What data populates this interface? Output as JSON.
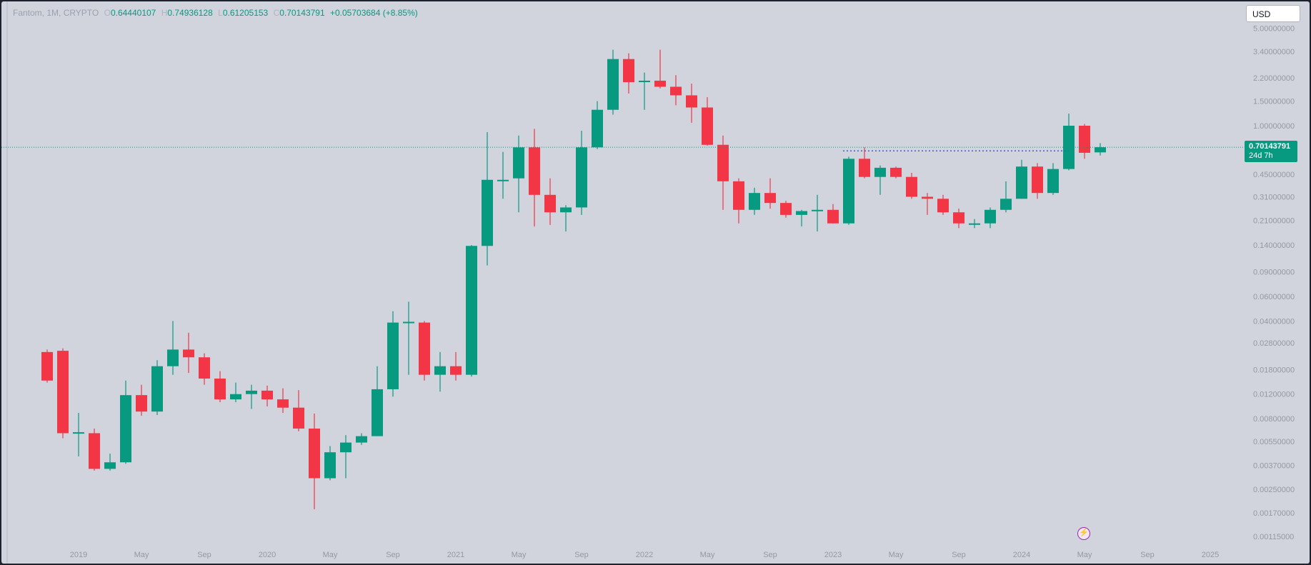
{
  "legend": {
    "symbol": "Fantom, 1M, CRYPTO",
    "o_label": "O",
    "o_value": "0.64440107",
    "h_label": "H",
    "h_value": "0.74936128",
    "l_label": "L",
    "l_value": "0.61205153",
    "c_label": "C",
    "c_value": "0.70143791",
    "change": "+0.05703684 (+8.85%)"
  },
  "currency": "USD",
  "last_price": {
    "value": "0.70143791",
    "countdown": "24d 7h"
  },
  "colors": {
    "up": "#089981",
    "down": "#f23645",
    "background": "#d1d4dc",
    "dashed_line": "#2962ff"
  },
  "chart_data": {
    "type": "candlestick",
    "y_scale": "log",
    "y_ticks": [
      "5.00000000",
      "3.40000000",
      "2.20000000",
      "1.50000000",
      "1.00000000",
      "0.45000000",
      "0.31000000",
      "0.21000000",
      "0.14000000",
      "0.09000000",
      "0.06000000",
      "0.04000000",
      "0.02800000",
      "0.01800000",
      "0.01200000",
      "0.00800000",
      "0.00550000",
      "0.00370000",
      "0.00250000",
      "0.00170000",
      "0.00115000"
    ],
    "x_ticks": [
      "2019",
      "May",
      "Sep",
      "2020",
      "May",
      "Sep",
      "2021",
      "May",
      "Sep",
      "2022",
      "May",
      "Sep",
      "2023",
      "May",
      "Sep",
      "2024",
      "May",
      "Sep",
      "2025"
    ],
    "x_range": [
      "2018-10",
      "2025-02"
    ],
    "series": [
      {
        "candles": [
          {
            "t": "2018-11",
            "o": 0.024,
            "h": 0.025,
            "l": 0.0145,
            "c": 0.015
          },
          {
            "t": "2018-12",
            "o": 0.0245,
            "h": 0.0255,
            "l": 0.0058,
            "c": 0.0063
          },
          {
            "t": "2019-01",
            "o": 0.0063,
            "h": 0.0088,
            "l": 0.0043,
            "c": 0.0064
          },
          {
            "t": "2019-02",
            "o": 0.0063,
            "h": 0.0068,
            "l": 0.0034,
            "c": 0.0035
          },
          {
            "t": "2019-03",
            "o": 0.0035,
            "h": 0.0045,
            "l": 0.0034,
            "c": 0.0039
          },
          {
            "t": "2019-04",
            "o": 0.0039,
            "h": 0.015,
            "l": 0.0038,
            "c": 0.0118
          },
          {
            "t": "2019-05",
            "o": 0.0118,
            "h": 0.014,
            "l": 0.0084,
            "c": 0.009
          },
          {
            "t": "2019-06",
            "o": 0.009,
            "h": 0.021,
            "l": 0.0085,
            "c": 0.019
          },
          {
            "t": "2019-07",
            "o": 0.019,
            "h": 0.04,
            "l": 0.0165,
            "c": 0.025
          },
          {
            "t": "2019-08",
            "o": 0.025,
            "h": 0.033,
            "l": 0.017,
            "c": 0.022
          },
          {
            "t": "2019-09",
            "o": 0.022,
            "h": 0.0235,
            "l": 0.014,
            "c": 0.0155
          },
          {
            "t": "2019-10",
            "o": 0.0155,
            "h": 0.0175,
            "l": 0.0105,
            "c": 0.011
          },
          {
            "t": "2019-11",
            "o": 0.011,
            "h": 0.0145,
            "l": 0.0105,
            "c": 0.012
          },
          {
            "t": "2019-12",
            "o": 0.012,
            "h": 0.014,
            "l": 0.0094,
            "c": 0.0127
          },
          {
            "t": "2020-01",
            "o": 0.0127,
            "h": 0.0138,
            "l": 0.0098,
            "c": 0.011
          },
          {
            "t": "2020-02",
            "o": 0.011,
            "h": 0.0132,
            "l": 0.0088,
            "c": 0.0096
          },
          {
            "t": "2020-03",
            "o": 0.0096,
            "h": 0.0128,
            "l": 0.0065,
            "c": 0.0068
          },
          {
            "t": "2020-04",
            "o": 0.0068,
            "h": 0.0087,
            "l": 0.0018,
            "c": 0.003
          },
          {
            "t": "2020-05",
            "o": 0.003,
            "h": 0.0051,
            "l": 0.0029,
            "c": 0.0046
          },
          {
            "t": "2020-06",
            "o": 0.0046,
            "h": 0.0061,
            "l": 0.003,
            "c": 0.0054
          },
          {
            "t": "2020-07",
            "o": 0.0054,
            "h": 0.0063,
            "l": 0.0052,
            "c": 0.006
          },
          {
            "t": "2020-08",
            "o": 0.006,
            "h": 0.019,
            "l": 0.006,
            "c": 0.013
          },
          {
            "t": "2020-09",
            "o": 0.013,
            "h": 0.047,
            "l": 0.0115,
            "c": 0.039
          },
          {
            "t": "2020-10",
            "o": 0.039,
            "h": 0.055,
            "l": 0.0165,
            "c": 0.0395
          },
          {
            "t": "2020-11",
            "o": 0.039,
            "h": 0.04,
            "l": 0.015,
            "c": 0.0165
          },
          {
            "t": "2020-12",
            "o": 0.0165,
            "h": 0.024,
            "l": 0.0125,
            "c": 0.019
          },
          {
            "t": "2021-01",
            "o": 0.019,
            "h": 0.024,
            "l": 0.015,
            "c": 0.0165
          },
          {
            "t": "2021-02",
            "o": 0.0165,
            "h": 0.14,
            "l": 0.016,
            "c": 0.138
          },
          {
            "t": "2021-03",
            "o": 0.138,
            "h": 0.9,
            "l": 0.1,
            "c": 0.41
          },
          {
            "t": "2021-04",
            "o": 0.41,
            "h": 0.65,
            "l": 0.3,
            "c": 0.41
          },
          {
            "t": "2021-05",
            "o": 0.42,
            "h": 0.85,
            "l": 0.24,
            "c": 0.7
          },
          {
            "t": "2021-06",
            "o": 0.7,
            "h": 0.95,
            "l": 0.19,
            "c": 0.32
          },
          {
            "t": "2021-07",
            "o": 0.32,
            "h": 0.42,
            "l": 0.195,
            "c": 0.24
          },
          {
            "t": "2021-08",
            "o": 0.24,
            "h": 0.27,
            "l": 0.175,
            "c": 0.26
          },
          {
            "t": "2021-09",
            "o": 0.26,
            "h": 0.92,
            "l": 0.23,
            "c": 0.7
          },
          {
            "t": "2021-10",
            "o": 0.7,
            "h": 1.5,
            "l": 0.68,
            "c": 1.3
          },
          {
            "t": "2021-11",
            "o": 1.3,
            "h": 3.5,
            "l": 1.2,
            "c": 3.0
          },
          {
            "t": "2021-12",
            "o": 3.0,
            "h": 3.3,
            "l": 1.7,
            "c": 2.05
          },
          {
            "t": "2022-01",
            "o": 2.05,
            "h": 2.4,
            "l": 1.3,
            "c": 2.1
          },
          {
            "t": "2022-02",
            "o": 2.1,
            "h": 3.5,
            "l": 1.85,
            "c": 1.9
          },
          {
            "t": "2022-03",
            "o": 1.9,
            "h": 2.3,
            "l": 1.4,
            "c": 1.65
          },
          {
            "t": "2022-04",
            "o": 1.65,
            "h": 2.0,
            "l": 1.05,
            "c": 1.35
          },
          {
            "t": "2022-05",
            "o": 1.35,
            "h": 1.6,
            "l": 0.72,
            "c": 0.73
          },
          {
            "t": "2022-06",
            "o": 0.73,
            "h": 0.85,
            "l": 0.25,
            "c": 0.4
          },
          {
            "t": "2022-07",
            "o": 0.4,
            "h": 0.42,
            "l": 0.2,
            "c": 0.25
          },
          {
            "t": "2022-08",
            "o": 0.25,
            "h": 0.36,
            "l": 0.23,
            "c": 0.33
          },
          {
            "t": "2022-09",
            "o": 0.33,
            "h": 0.42,
            "l": 0.255,
            "c": 0.28
          },
          {
            "t": "2022-10",
            "o": 0.28,
            "h": 0.29,
            "l": 0.22,
            "c": 0.23
          },
          {
            "t": "2022-11",
            "o": 0.23,
            "h": 0.25,
            "l": 0.19,
            "c": 0.245
          },
          {
            "t": "2022-12",
            "o": 0.245,
            "h": 0.32,
            "l": 0.175,
            "c": 0.25
          },
          {
            "t": "2023-01",
            "o": 0.25,
            "h": 0.275,
            "l": 0.2,
            "c": 0.2
          },
          {
            "t": "2023-02",
            "o": 0.2,
            "h": 0.6,
            "l": 0.195,
            "c": 0.58
          },
          {
            "t": "2023-03",
            "o": 0.58,
            "h": 0.7,
            "l": 0.42,
            "c": 0.43
          },
          {
            "t": "2023-04",
            "o": 0.43,
            "h": 0.52,
            "l": 0.32,
            "c": 0.5
          },
          {
            "t": "2023-05",
            "o": 0.5,
            "h": 0.51,
            "l": 0.42,
            "c": 0.43
          },
          {
            "t": "2023-06",
            "o": 0.43,
            "h": 0.46,
            "l": 0.3,
            "c": 0.31
          },
          {
            "t": "2023-07",
            "o": 0.31,
            "h": 0.33,
            "l": 0.23,
            "c": 0.3
          },
          {
            "t": "2023-08",
            "o": 0.3,
            "h": 0.32,
            "l": 0.23,
            "c": 0.24
          },
          {
            "t": "2023-09",
            "o": 0.24,
            "h": 0.255,
            "l": 0.185,
            "c": 0.2
          },
          {
            "t": "2023-10",
            "o": 0.2,
            "h": 0.215,
            "l": 0.185,
            "c": 0.2
          },
          {
            "t": "2023-11",
            "o": 0.2,
            "h": 0.26,
            "l": 0.185,
            "c": 0.25
          },
          {
            "t": "2023-12",
            "o": 0.25,
            "h": 0.4,
            "l": 0.24,
            "c": 0.3
          },
          {
            "t": "2024-01",
            "o": 0.3,
            "h": 0.57,
            "l": 0.3,
            "c": 0.51
          },
          {
            "t": "2024-02",
            "o": 0.51,
            "h": 0.54,
            "l": 0.3,
            "c": 0.33
          },
          {
            "t": "2024-03",
            "o": 0.33,
            "h": 0.54,
            "l": 0.32,
            "c": 0.49
          },
          {
            "t": "2024-04",
            "o": 0.49,
            "h": 1.22,
            "l": 0.48,
            "c": 1.0
          },
          {
            "t": "2024-05",
            "o": 1.0,
            "h": 1.03,
            "l": 0.58,
            "c": 0.64
          },
          {
            "t": "2024-06",
            "o": 0.6444,
            "h": 0.7494,
            "l": 0.6121,
            "c": 0.7014
          }
        ]
      }
    ],
    "horizontal_line": 0.70143791,
    "dotted_level": {
      "value": 0.66,
      "from": "2023-02",
      "to": "2024-04"
    }
  }
}
